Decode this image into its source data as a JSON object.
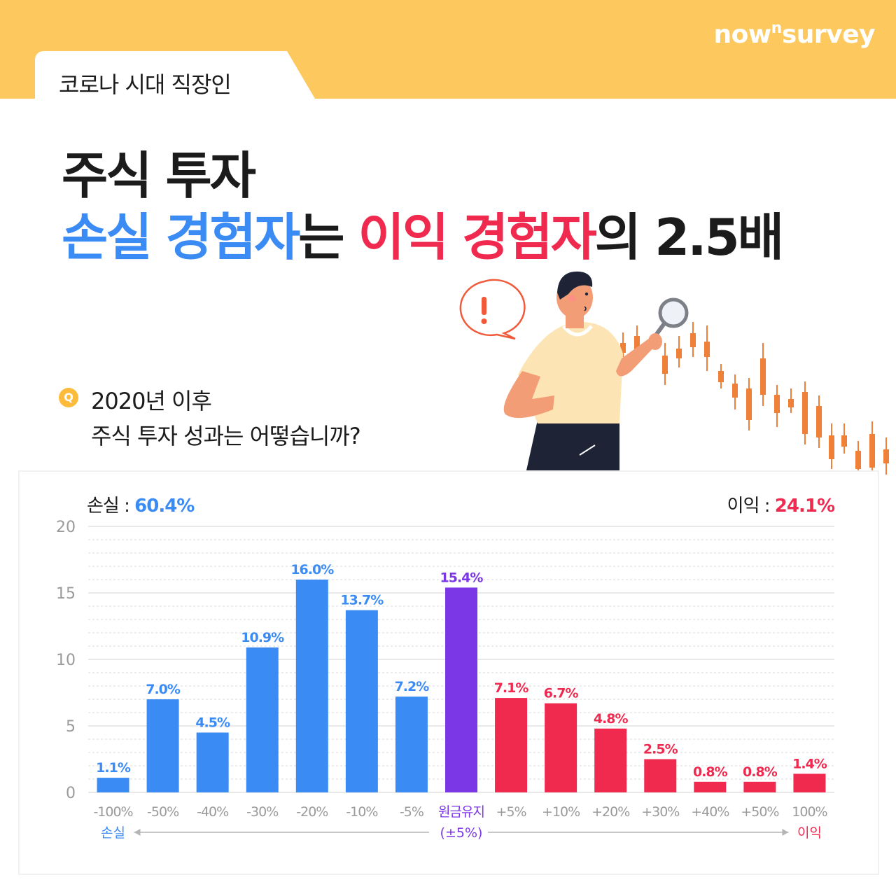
{
  "header": {
    "tag": "코로나 시대 직장인",
    "brand_main": "now",
    "brand_sup": "n",
    "brand_tail": "survey"
  },
  "title": {
    "line1": "주식 투자",
    "line2_part1": "손실 경험자",
    "line2_part2": "는 ",
    "line2_part3": "이익 경험자",
    "line2_part4": "의 2.5배"
  },
  "question": {
    "icon": "Q",
    "line1": "2020년 이후",
    "line2": "주식 투자 성과는 어떻습니까?"
  },
  "summary": {
    "loss_label": "손실 : ",
    "loss_value": "60.4%",
    "gain_label": "이익 : ",
    "gain_value": "24.1%"
  },
  "colors": {
    "loss": "#3b8bf5",
    "neutral": "#7b36e6",
    "gain": "#f0294f",
    "band": "#fdc85e",
    "candle": "#f07f38"
  },
  "illustration": {
    "alert_icon": "exclamation-icon",
    "magnifier_icon": "magnifier-icon"
  },
  "chart_data": {
    "type": "bar",
    "categories": [
      "-100%",
      "-50%",
      "-40%",
      "-30%",
      "-20%",
      "-10%",
      "-5%",
      "원금유지",
      "+5%",
      "+10%",
      "+20%",
      "+30%",
      "+40%",
      "+50%",
      "100%"
    ],
    "values": [
      1.1,
      7.0,
      4.5,
      10.9,
      16.0,
      13.7,
      7.2,
      15.4,
      7.1,
      6.7,
      4.8,
      2.5,
      0.8,
      0.8,
      1.4
    ],
    "value_labels": [
      "1.1%",
      "7.0%",
      "4.5%",
      "10.9%",
      "16.0%",
      "13.7%",
      "7.2%",
      "15.4%",
      "7.1%",
      "6.7%",
      "4.8%",
      "2.5%",
      "0.8%",
      "0.8%",
      "1.4%"
    ],
    "groups": [
      "loss",
      "loss",
      "loss",
      "loss",
      "loss",
      "loss",
      "loss",
      "neutral",
      "gain",
      "gain",
      "gain",
      "gain",
      "gain",
      "gain",
      "gain"
    ],
    "neutral_sublabel": "(±5%)",
    "axis_left_label": "손실",
    "axis_right_label": "이익",
    "yticks": [
      0,
      5,
      10,
      15,
      20
    ],
    "ylim": [
      0,
      20
    ],
    "grid": true
  }
}
